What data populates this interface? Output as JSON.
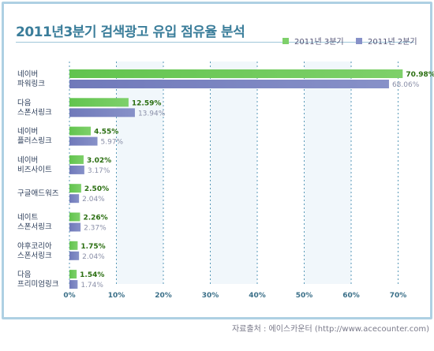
{
  "title": "2011년3분기 검색광고 유입 점유율 분석",
  "source": "자료출처 : 에이스카운터 (http://www.acecounter.com)",
  "colors": {
    "series_q3": "#7ed06a",
    "series_q2": "#8791c8",
    "label_q3": "#2a6e10",
    "label_q2": "#8a8fa8"
  },
  "chart_data": {
    "type": "bar",
    "orientation": "horizontal",
    "categories": [
      [
        "네이버",
        "파워링크"
      ],
      [
        "다음",
        "스폰서링크"
      ],
      [
        "네이버",
        "플러스링크"
      ],
      [
        "네이버",
        "비즈사이트"
      ],
      [
        "구글애드워즈"
      ],
      [
        "네이트",
        "스폰서링크"
      ],
      [
        "야후코리아",
        "스폰서링크"
      ],
      [
        "다음",
        "프리미엄링크"
      ]
    ],
    "series": [
      {
        "name": "2011년 3분기",
        "values": [
          70.98,
          12.59,
          4.55,
          3.02,
          2.5,
          2.26,
          1.75,
          1.54
        ]
      },
      {
        "name": "2011년 2분기",
        "values": [
          68.06,
          13.94,
          5.97,
          3.17,
          2.04,
          2.37,
          2.04,
          1.74
        ]
      }
    ],
    "value_labels": {
      "2011년 3분기": [
        "70.98%",
        "12.59%",
        "4.55%",
        "3.02%",
        "2.50%",
        "2.26%",
        "1.75%",
        "1.54%"
      ],
      "2011년 2분기": [
        "68.06%",
        "13.94%",
        "5.97%",
        "3.17%",
        "2.04%",
        "2.37%",
        "2.04%",
        "1.74%"
      ]
    },
    "x_ticks": [
      "0%",
      "10%",
      "20%",
      "30%",
      "40%",
      "50%",
      "60%",
      "70%"
    ],
    "xlim": [
      0,
      70
    ],
    "legend_position": "top-right",
    "grid": "vertical dashed"
  }
}
